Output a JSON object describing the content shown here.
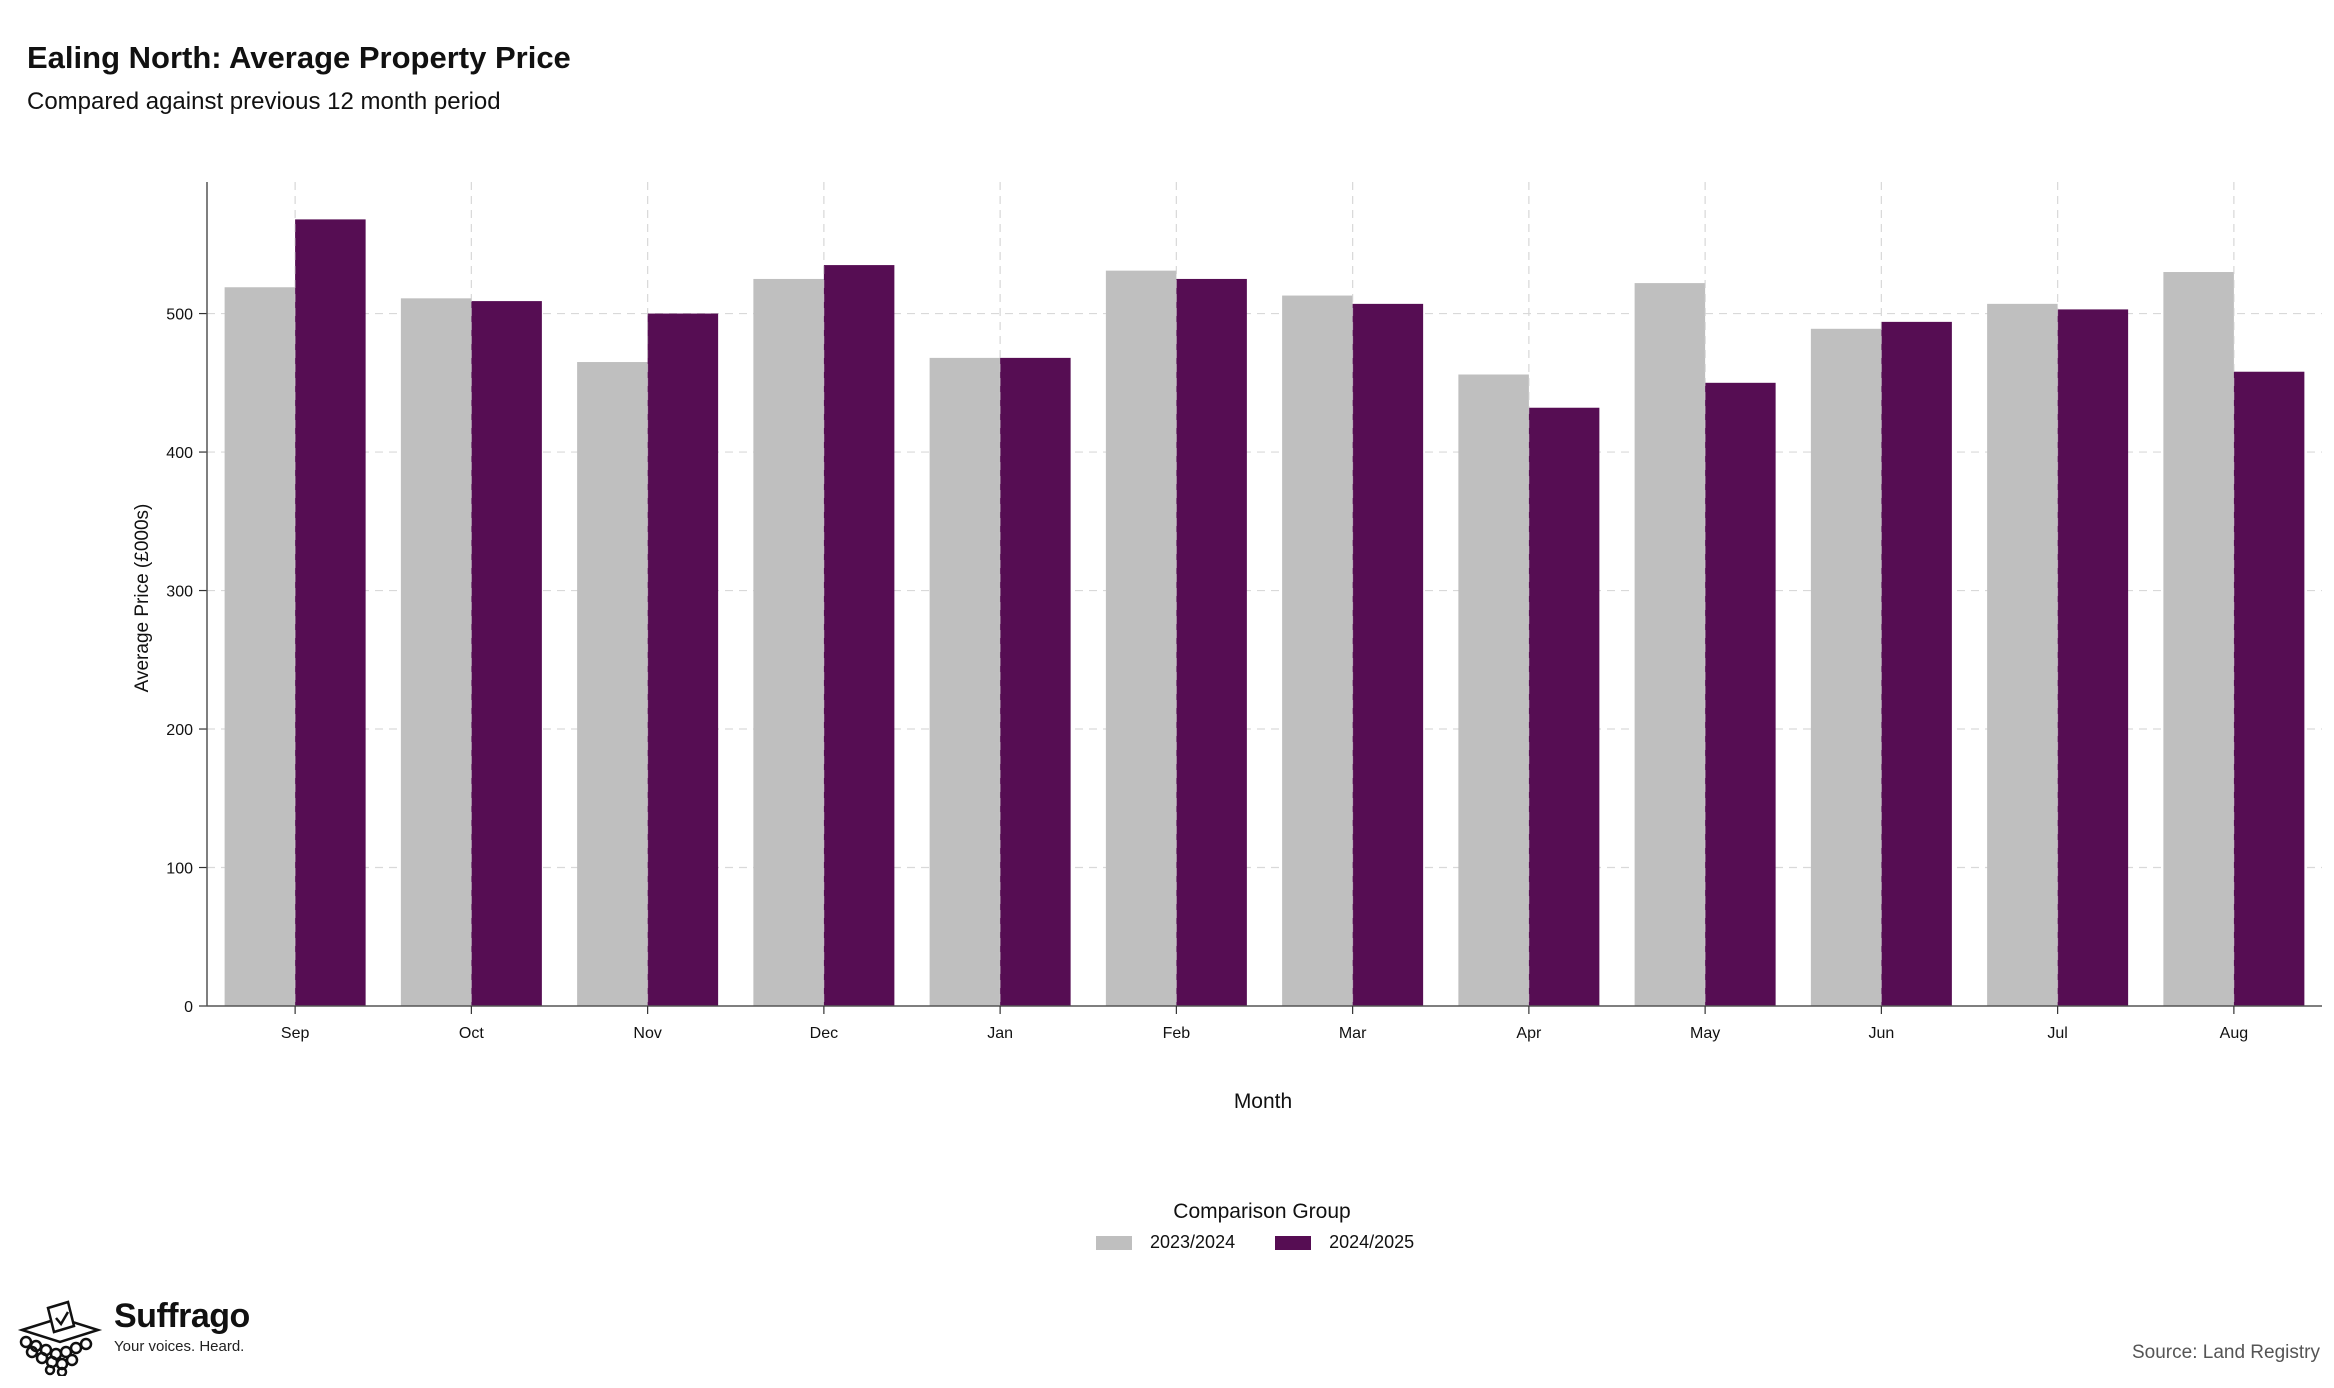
{
  "header": {
    "title": "Ealing North: Average Property Price",
    "subtitle": "Compared against previous 12 month period"
  },
  "legend": {
    "title": "Comparison Group",
    "items": [
      {
        "label": "2023/2024",
        "color": "#bfbfbf"
      },
      {
        "label": "2024/2025",
        "color": "#560d53"
      }
    ]
  },
  "branding": {
    "logo_icon": "ballot-box-icon",
    "name": "Suffrago",
    "tagline": "Your voices. Heard."
  },
  "source": "Source: Land Registry",
  "chart_data": {
    "type": "bar",
    "title": "Ealing North: Average Property Price",
    "subtitle": "Compared against previous 12 month period",
    "xlabel": "Month",
    "ylabel": "Average Price (£000s)",
    "categories": [
      "Sep",
      "Oct",
      "Nov",
      "Dec",
      "Jan",
      "Feb",
      "Mar",
      "Apr",
      "May",
      "Jun",
      "Jul",
      "Aug"
    ],
    "series": [
      {
        "name": "2023/2024",
        "color": "#bfbfbf",
        "values": [
          519,
          511,
          465,
          525,
          468,
          531,
          513,
          456,
          522,
          489,
          507,
          530
        ]
      },
      {
        "name": "2024/2025",
        "color": "#560d53",
        "values": [
          568,
          509,
          500,
          535,
          468,
          525,
          507,
          432,
          450,
          494,
          503,
          458
        ]
      }
    ],
    "ylim": [
      0,
      595
    ],
    "yticks": [
      0,
      100,
      200,
      300,
      400,
      500
    ],
    "grid": true,
    "legend_position": "bottom"
  }
}
